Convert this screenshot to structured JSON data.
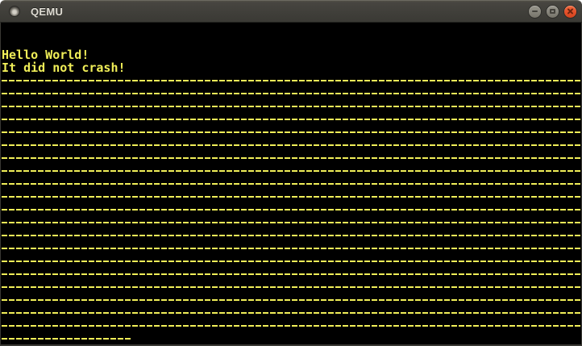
{
  "window": {
    "title": "QEMU",
    "controls": [
      {
        "name": "minimize"
      },
      {
        "name": "maximize"
      },
      {
        "name": "close"
      }
    ]
  },
  "theme": {
    "titlebar_background": "#3e3c38",
    "titlebar_text": "#dfdcd3",
    "close_button": "#e5512b",
    "button_gray": "#8a887f",
    "console_background": "#000000",
    "console_text": "#f0ee58"
  },
  "console": {
    "columns": 80,
    "rows": 25,
    "lines": [
      {
        "type": "blank"
      },
      {
        "type": "blank"
      },
      {
        "type": "text",
        "text": "Hello World!"
      },
      {
        "type": "text",
        "text": "It did not crash!"
      },
      {
        "type": "dashes",
        "char": "-",
        "count": 80
      },
      {
        "type": "dashes",
        "char": "-",
        "count": 80
      },
      {
        "type": "dashes",
        "char": "-",
        "count": 80
      },
      {
        "type": "dashes",
        "char": "-",
        "count": 80
      },
      {
        "type": "dashes",
        "char": "-",
        "count": 80
      },
      {
        "type": "dashes",
        "char": "-",
        "count": 80
      },
      {
        "type": "dashes",
        "char": "-",
        "count": 80
      },
      {
        "type": "dashes",
        "char": "-",
        "count": 80
      },
      {
        "type": "dashes",
        "char": "-",
        "count": 80
      },
      {
        "type": "dashes",
        "char": "-",
        "count": 80
      },
      {
        "type": "dashes",
        "char": "-",
        "count": 80
      },
      {
        "type": "dashes",
        "char": "-",
        "count": 80
      },
      {
        "type": "dashes",
        "char": "-",
        "count": 80
      },
      {
        "type": "dashes",
        "char": "-",
        "count": 80
      },
      {
        "type": "dashes",
        "char": "-",
        "count": 80
      },
      {
        "type": "dashes",
        "char": "-",
        "count": 80
      },
      {
        "type": "dashes",
        "char": "-",
        "count": 80
      },
      {
        "type": "dashes",
        "char": "-",
        "count": 80
      },
      {
        "type": "dashes",
        "char": "-",
        "count": 80
      },
      {
        "type": "dashes",
        "char": "-",
        "count": 80
      },
      {
        "type": "dashes",
        "char": "-",
        "count": 18
      }
    ]
  }
}
